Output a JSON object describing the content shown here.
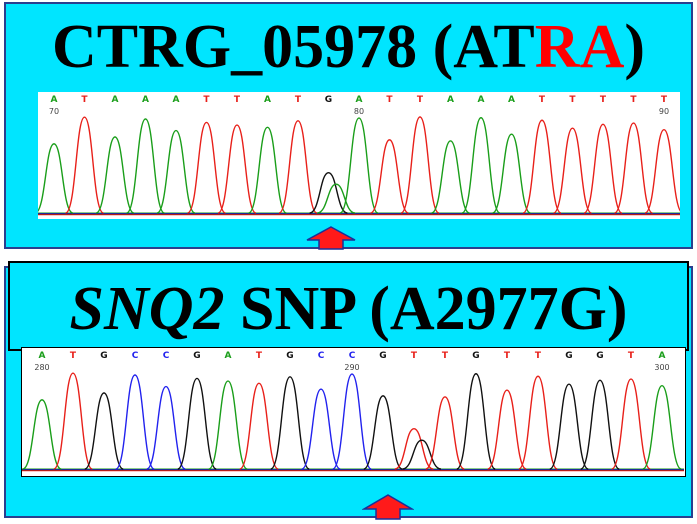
{
  "panels": [
    {
      "title_prefix": "CTRG_05978 (AT",
      "title_highlight": "RA",
      "title_suffix": ")",
      "sequence": [
        "A",
        "T",
        "A",
        "A",
        "A",
        "T",
        "T",
        "A",
        "T",
        "G",
        "A",
        "T",
        "T",
        "A",
        "A",
        "A",
        "T",
        "T",
        "T",
        "T",
        "T"
      ],
      "positions": [
        {
          "label": "70",
          "index": 0
        },
        {
          "label": "80",
          "index": 10
        },
        {
          "label": "90",
          "index": 20
        }
      ],
      "marker_index": 9
    },
    {
      "title_italic": "SNQ2",
      "title_rest": " SNP (A2977G)",
      "sequence": [
        "A",
        "T",
        "G",
        "C",
        "C",
        "G",
        "A",
        "T",
        "G",
        "C",
        "C",
        "G",
        "T",
        "T",
        "G",
        "T",
        "T",
        "G",
        "G",
        "T",
        "A"
      ],
      "positions": [
        {
          "label": "280",
          "index": 0
        },
        {
          "label": "290",
          "index": 10
        },
        {
          "label": "300",
          "index": 20
        }
      ],
      "marker_index": 12
    }
  ],
  "colors": {
    "panel_bg": "#00e5ff",
    "A": "#1a9e1a",
    "T": "#e8201a",
    "G": "#111111",
    "C": "#2222ee",
    "highlight": "#ff0000",
    "arrow_fill": "#ff1a1a",
    "arrow_stroke": "#1a2f9a"
  }
}
